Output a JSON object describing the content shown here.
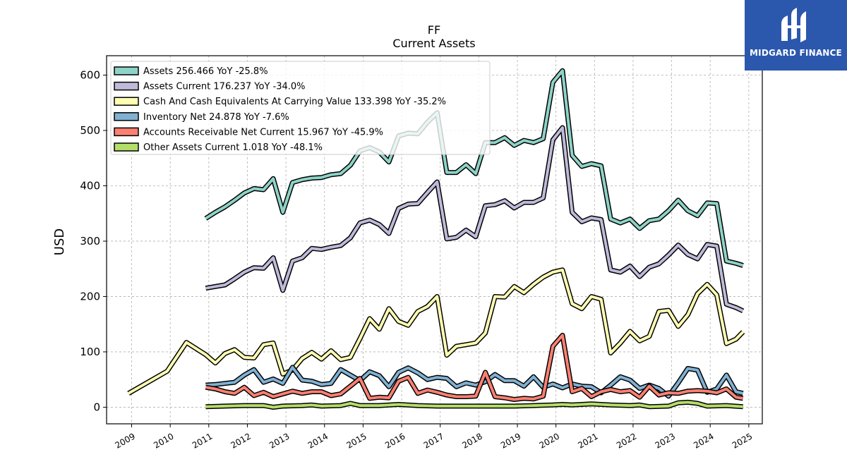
{
  "chart_data": {
    "type": "line",
    "title": "FF",
    "subtitle": "Current  Assets",
    "ylabel": "USD",
    "xlabel": "",
    "xlim": [
      2008.35,
      2025.35
    ],
    "ylim": [
      -30,
      635
    ],
    "y_ticks": [
      0,
      100,
      200,
      300,
      400,
      500,
      600
    ],
    "x_ticks": [
      "2009",
      "2010",
      "2011",
      "2012",
      "2013",
      "2014",
      "2015",
      "2016",
      "2017",
      "2018",
      "2019",
      "2020",
      "2021",
      "2022",
      "2023",
      "2024",
      "2025"
    ],
    "grid": true,
    "legend_position": "top-left",
    "series": [
      {
        "name": "Assets  256.466 YoY -25.8%",
        "color": "#8dd3c7",
        "x": [
          2010.92,
          2011.17,
          2011.42,
          2011.67,
          2011.92,
          2012.17,
          2012.42,
          2012.67,
          2012.92,
          2013.17,
          2013.42,
          2013.67,
          2013.92,
          2014.17,
          2014.42,
          2014.67,
          2014.92,
          2015.17,
          2015.42,
          2015.67,
          2015.92,
          2016.17,
          2016.42,
          2016.67,
          2016.92,
          2017.17,
          2017.42,
          2017.67,
          2017.92,
          2018.17,
          2018.42,
          2018.67,
          2018.92,
          2019.17,
          2019.42,
          2019.67,
          2019.92,
          2020.17,
          2020.42,
          2020.67,
          2020.92,
          2021.17,
          2021.42,
          2021.67,
          2021.92,
          2022.17,
          2022.42,
          2022.67,
          2022.92,
          2023.17,
          2023.42,
          2023.67,
          2023.92,
          2024.17,
          2024.42,
          2024.67,
          2024.85
        ],
        "y": [
          341,
          352,
          362,
          374,
          387,
          395,
          393,
          413,
          352,
          406,
          411,
          414,
          415,
          420,
          422,
          437,
          463,
          469,
          461,
          443,
          490,
          495,
          494,
          515,
          532,
          424,
          424,
          438,
          422,
          478,
          478,
          487,
          473,
          482,
          478,
          485,
          587,
          608,
          455,
          435,
          440,
          436,
          340,
          333,
          340,
          323,
          337,
          340,
          355,
          374,
          355,
          346,
          369,
          368,
          264,
          260,
          256
        ]
      },
      {
        "name": "Assets Current  176.237 YoY -34.0%",
        "color": "#bebada",
        "x": [
          2010.92,
          2011.17,
          2011.42,
          2011.67,
          2011.92,
          2012.17,
          2012.42,
          2012.67,
          2012.92,
          2013.17,
          2013.42,
          2013.67,
          2013.92,
          2014.17,
          2014.42,
          2014.67,
          2014.92,
          2015.17,
          2015.42,
          2015.67,
          2015.92,
          2016.17,
          2016.42,
          2016.67,
          2016.92,
          2017.17,
          2017.42,
          2017.67,
          2017.92,
          2018.17,
          2018.42,
          2018.67,
          2018.92,
          2019.17,
          2019.42,
          2019.67,
          2019.92,
          2020.17,
          2020.42,
          2020.67,
          2020.92,
          2021.17,
          2021.42,
          2021.67,
          2021.92,
          2022.17,
          2022.42,
          2022.67,
          2022.92,
          2023.17,
          2023.42,
          2023.67,
          2023.92,
          2024.17,
          2024.42,
          2024.67,
          2024.85
        ],
        "y": [
          215,
          218,
          221,
          232,
          244,
          252,
          251,
          270,
          211,
          264,
          270,
          287,
          285,
          289,
          292,
          306,
          333,
          338,
          330,
          314,
          359,
          367,
          368,
          388,
          407,
          304,
          307,
          320,
          308,
          364,
          366,
          373,
          360,
          370,
          370,
          378,
          483,
          505,
          352,
          335,
          342,
          339,
          248,
          244,
          255,
          236,
          253,
          259,
          275,
          293,
          276,
          268,
          294,
          291,
          186,
          180,
          174
        ]
      },
      {
        "name": "Cash And Cash Equivalents At Carrying Value  133.398 YoY -35.2%",
        "color": "#ffffb3",
        "x": [
          2008.92,
          2009.92,
          2010.42,
          2010.92,
          2011.17,
          2011.42,
          2011.67,
          2011.92,
          2012.17,
          2012.42,
          2012.67,
          2012.92,
          2013.17,
          2013.42,
          2013.67,
          2013.92,
          2014.17,
          2014.42,
          2014.67,
          2014.92,
          2015.17,
          2015.42,
          2015.67,
          2015.92,
          2016.17,
          2016.42,
          2016.67,
          2016.92,
          2017.17,
          2017.42,
          2017.67,
          2017.92,
          2018.17,
          2018.42,
          2018.67,
          2018.92,
          2019.17,
          2019.42,
          2019.67,
          2019.92,
          2020.17,
          2020.42,
          2020.67,
          2020.92,
          2021.17,
          2021.42,
          2021.67,
          2021.92,
          2022.17,
          2022.42,
          2022.67,
          2022.92,
          2023.17,
          2023.42,
          2023.67,
          2023.92,
          2024.17,
          2024.42,
          2024.67,
          2024.85
        ],
        "y": [
          25,
          65,
          117,
          95,
          80,
          97,
          104,
          90,
          89,
          113,
          116,
          60,
          67,
          88,
          99,
          87,
          102,
          86,
          90,
          124,
          160,
          141,
          178,
          155,
          148,
          173,
          182,
          200,
          94,
          110,
          113,
          116,
          134,
          200,
          199,
          218,
          207,
          222,
          235,
          244,
          248,
          187,
          178,
          200,
          195,
          98,
          116,
          137,
          120,
          128,
          173,
          175,
          146,
          167,
          205,
          222,
          203,
          115,
          123,
          136
        ]
      },
      {
        "name": "Inventory Net  24.878 YoY -7.6%",
        "color": "#80b1d3",
        "x": [
          2010.92,
          2011.17,
          2011.42,
          2011.67,
          2011.92,
          2012.17,
          2012.42,
          2012.67,
          2012.92,
          2013.17,
          2013.42,
          2013.67,
          2013.92,
          2014.17,
          2014.42,
          2014.67,
          2014.92,
          2015.17,
          2015.42,
          2015.67,
          2015.92,
          2016.17,
          2016.42,
          2016.67,
          2016.92,
          2017.17,
          2017.42,
          2017.67,
          2017.92,
          2018.17,
          2018.42,
          2018.67,
          2018.92,
          2019.17,
          2019.42,
          2019.67,
          2019.92,
          2020.17,
          2020.42,
          2020.67,
          2020.92,
          2021.17,
          2021.42,
          2021.67,
          2021.92,
          2022.17,
          2022.42,
          2022.67,
          2022.92,
          2023.17,
          2023.42,
          2023.67,
          2023.92,
          2024.17,
          2024.42,
          2024.67,
          2024.85
        ],
        "y": [
          40,
          41,
          43,
          45,
          58,
          68,
          45,
          51,
          43,
          72,
          49,
          47,
          41,
          43,
          68,
          58,
          48,
          64,
          57,
          37,
          63,
          71,
          62,
          50,
          54,
          52,
          37,
          44,
          40,
          46,
          59,
          48,
          48,
          38,
          55,
          36,
          42,
          35,
          42,
          38,
          37,
          26,
          40,
          55,
          49,
          34,
          40,
          34,
          20,
          44,
          70,
          67,
          27,
          33,
          58,
          28,
          25
        ]
      },
      {
        "name": "Accounts Receivable Net Current  15.967 YoY -45.9%",
        "color": "#fb8072",
        "x": [
          2010.92,
          2011.17,
          2011.42,
          2011.67,
          2011.92,
          2012.17,
          2012.42,
          2012.67,
          2012.92,
          2013.17,
          2013.42,
          2013.67,
          2013.92,
          2014.17,
          2014.42,
          2014.67,
          2014.92,
          2015.17,
          2015.42,
          2015.67,
          2015.92,
          2016.17,
          2016.42,
          2016.67,
          2016.92,
          2017.17,
          2017.42,
          2017.67,
          2017.92,
          2018.17,
          2018.42,
          2018.67,
          2018.92,
          2019.17,
          2019.42,
          2019.67,
          2019.92,
          2020.17,
          2020.42,
          2020.67,
          2020.92,
          2021.17,
          2021.42,
          2021.67,
          2021.92,
          2022.17,
          2022.42,
          2022.67,
          2022.92,
          2023.17,
          2023.42,
          2023.67,
          2023.92,
          2024.17,
          2024.42,
          2024.67,
          2024.85
        ],
        "y": [
          36,
          33,
          28,
          25,
          36,
          21,
          27,
          19,
          24,
          29,
          25,
          28,
          28,
          21,
          24,
          38,
          52,
          16,
          18,
          17,
          47,
          54,
          25,
          31,
          27,
          22,
          19,
          19,
          20,
          63,
          19,
          17,
          14,
          16,
          15,
          20,
          110,
          130,
          28,
          34,
          19,
          28,
          32,
          28,
          30,
          18,
          38,
          22,
          26,
          25,
          29,
          30,
          29,
          26,
          33,
          18,
          16
        ]
      },
      {
        "name": "Other Assets Current  1.018 YoY -48.1%",
        "color": "#b3de69",
        "x": [
          2010.92,
          2011.42,
          2011.92,
          2012.42,
          2012.67,
          2012.92,
          2013.42,
          2013.67,
          2013.92,
          2014.42,
          2014.67,
          2014.92,
          2015.42,
          2015.92,
          2016.42,
          2016.92,
          2017.42,
          2017.92,
          2018.42,
          2018.92,
          2019.42,
          2019.92,
          2020.17,
          2020.42,
          2020.92,
          2021.42,
          2021.92,
          2022.17,
          2022.42,
          2022.92,
          2023.17,
          2023.42,
          2023.67,
          2023.92,
          2024.42,
          2024.85
        ],
        "y": [
          1,
          2,
          3,
          3,
          0,
          2,
          3,
          4,
          2,
          3,
          7,
          3,
          3,
          5,
          3,
          2,
          2,
          2,
          2,
          2,
          3,
          4,
          5,
          4,
          6,
          4,
          3,
          4,
          1,
          2,
          8,
          9,
          7,
          2,
          3,
          1
        ]
      }
    ]
  }
}
